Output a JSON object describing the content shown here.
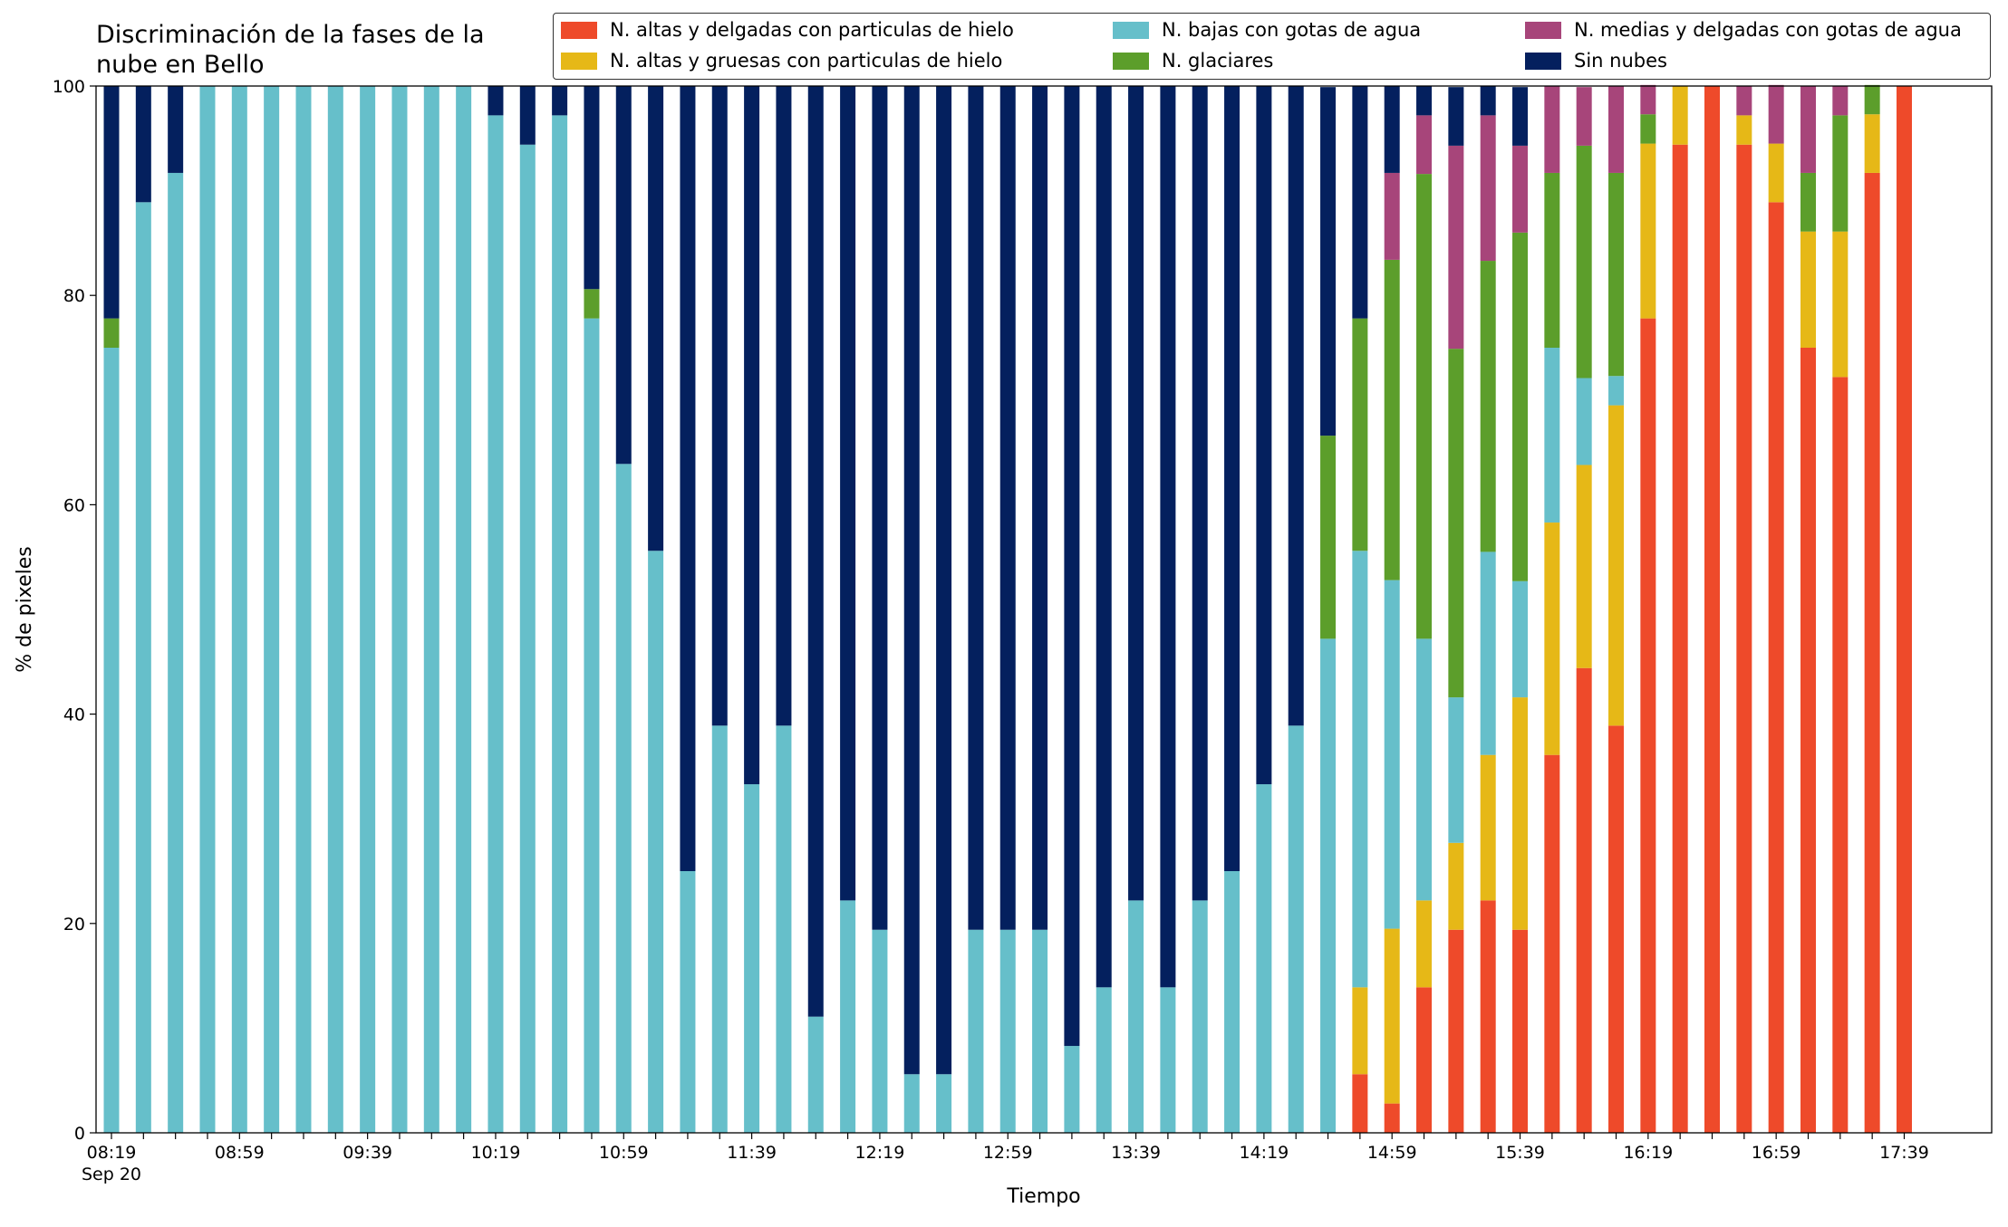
{
  "chart_data": {
    "type": "bar",
    "stacked": true,
    "title": "Discriminación de la fases de la\nnube en Bello",
    "xlabel": "Tiempo",
    "ylabel": "% de pixeles",
    "x_sublabel": "Sep 20",
    "categories": [
      "08:19",
      null,
      null,
      null,
      "08:59",
      null,
      null,
      null,
      "09:39",
      null,
      null,
      null,
      "10:19",
      null,
      null,
      null,
      "10:59",
      null,
      null,
      null,
      "11:39",
      null,
      null,
      null,
      "12:19",
      null,
      null,
      null,
      "12:59",
      null,
      null,
      null,
      "13:39",
      null,
      null,
      null,
      "14:19",
      null,
      null,
      null,
      "14:59",
      null,
      null,
      null,
      "15:39",
      null,
      null,
      null,
      "16:19",
      null,
      null,
      null,
      "16:59",
      null,
      null,
      null,
      "17:39"
    ],
    "ylim": [
      0,
      100
    ],
    "yticks": [
      0,
      20,
      40,
      60,
      80,
      100
    ],
    "grid": false,
    "legend": "upper right",
    "series": [
      {
        "name": "N. altas y delgadas con particulas de hielo",
        "color": "#ee4a2a",
        "values": [
          0,
          0,
          0,
          0,
          0,
          0,
          0,
          0,
          0,
          0,
          0,
          0,
          0,
          0,
          0,
          0,
          0,
          0,
          0,
          0,
          0,
          0,
          0,
          0,
          0,
          0,
          0,
          0,
          0,
          0,
          0,
          0,
          0,
          0,
          0,
          0,
          0,
          0,
          0,
          5.6,
          2.8,
          13.9,
          19.4,
          22.2,
          19.4,
          36.1,
          44.4,
          38.9,
          77.8,
          94.4,
          100,
          94.4,
          88.9,
          75,
          72.2,
          91.7,
          100
        ]
      },
      {
        "name": "N. altas y gruesas con particulas de hielo",
        "color": "#e6b817",
        "values": [
          0,
          0,
          0,
          0,
          0,
          0,
          0,
          0,
          0,
          0,
          0,
          0,
          0,
          0,
          0,
          0,
          0,
          0,
          0,
          0,
          0,
          0,
          0,
          0,
          0,
          0,
          0,
          0,
          0,
          0,
          0,
          0,
          0,
          0,
          0,
          0,
          0,
          0,
          0,
          8.3,
          16.7,
          8.3,
          8.3,
          13.9,
          22.2,
          22.2,
          19.4,
          30.6,
          16.7,
          5.6,
          0,
          2.8,
          5.6,
          11.1,
          13.9,
          5.6,
          0
        ]
      },
      {
        "name": "N. bajas con gotas de agua",
        "color": "#66bfca",
        "values": [
          75,
          88.9,
          91.7,
          100,
          100,
          100,
          100,
          100,
          100,
          100,
          100,
          100,
          97.2,
          94.4,
          97.2,
          77.8,
          63.9,
          55.6,
          25,
          38.9,
          33.3,
          38.9,
          11.1,
          22.2,
          19.4,
          5.6,
          5.6,
          19.4,
          19.4,
          19.4,
          8.3,
          13.9,
          22.2,
          13.9,
          22.2,
          25,
          33.3,
          38.9,
          47.2,
          41.7,
          33.3,
          25,
          13.9,
          19.4,
          11.1,
          16.7,
          8.3,
          2.8,
          0,
          0,
          0,
          0,
          0,
          0,
          0,
          0,
          0
        ]
      },
      {
        "name": "N. glaciares",
        "color": "#5c9e2b",
        "values": [
          2.8,
          0,
          0,
          0,
          0,
          0,
          0,
          0,
          0,
          0,
          0,
          0,
          0,
          0,
          0,
          2.8,
          0,
          0,
          0,
          0,
          0,
          0,
          0,
          0,
          0,
          0,
          0,
          0,
          0,
          0,
          0,
          0,
          0,
          0,
          0,
          0,
          0,
          0,
          19.4,
          22.2,
          30.6,
          44.4,
          33.3,
          27.8,
          33.3,
          16.7,
          22.2,
          19.4,
          2.8,
          0,
          0,
          0,
          0,
          5.6,
          11.1,
          2.8,
          0
        ]
      },
      {
        "name": "N. medias y delgadas con gotas de agua",
        "color": "#a7457a",
        "values": [
          0,
          0,
          0,
          0,
          0,
          0,
          0,
          0,
          0,
          0,
          0,
          0,
          0,
          0,
          0,
          0,
          0,
          0,
          0,
          0,
          0,
          0,
          0,
          0,
          0,
          0,
          0,
          0,
          0,
          0,
          0,
          0,
          0,
          0,
          0,
          0,
          0,
          0,
          0,
          0,
          8.3,
          5.6,
          19.4,
          13.9,
          8.3,
          8.3,
          5.6,
          8.3,
          2.8,
          0,
          0,
          2.8,
          5.6,
          8.3,
          2.8,
          0,
          0
        ]
      },
      {
        "name": "Sin nubes",
        "color": "#04205e",
        "values": [
          22.2,
          11.1,
          8.3,
          0,
          0,
          0,
          0,
          0,
          0,
          0,
          0,
          0,
          2.8,
          5.6,
          2.8,
          19.4,
          36.1,
          44.4,
          75,
          61.1,
          66.7,
          61.1,
          88.9,
          77.8,
          80.6,
          94.4,
          94.4,
          80.6,
          80.6,
          80.6,
          91.7,
          86.1,
          77.8,
          86.1,
          77.8,
          75,
          66.7,
          61.1,
          33.3,
          22.2,
          8.3,
          2.8,
          5.6,
          2.8,
          5.6,
          0,
          0,
          0,
          0,
          0,
          0,
          0,
          0,
          0,
          0,
          0,
          0
        ]
      }
    ]
  }
}
